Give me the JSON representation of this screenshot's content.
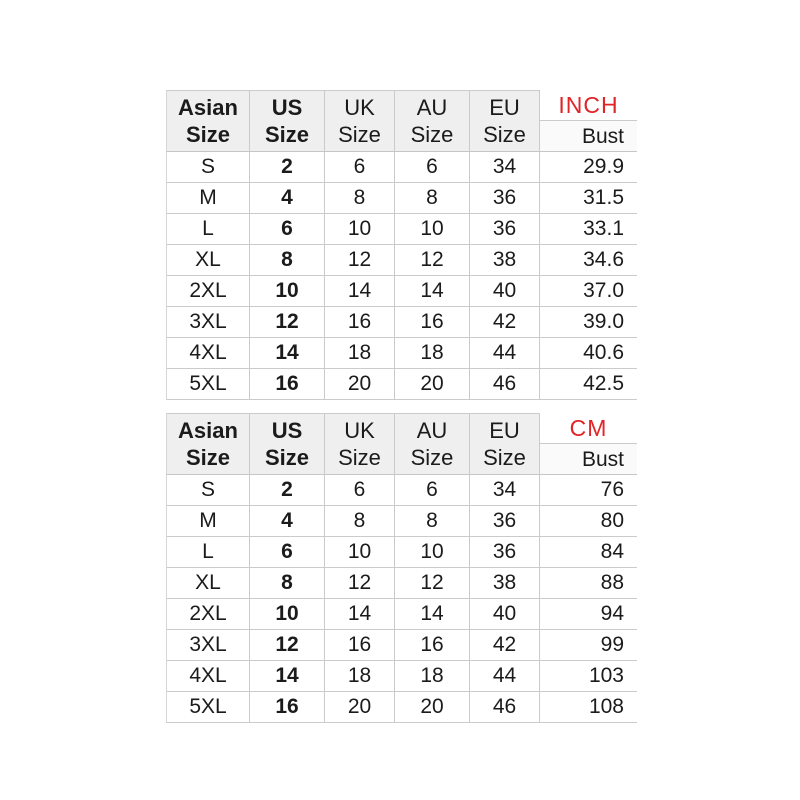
{
  "colors": {
    "accent_red": "#e02428",
    "header_bg": "#f0efef",
    "border": "#cbcbcb",
    "text": "#1b1b1b",
    "background": "#ffffff"
  },
  "chart_data": [
    {
      "type": "table",
      "unit_label": "INCH",
      "measure_label": "Bust",
      "headers": [
        {
          "line1": "Asian",
          "line2": "Size"
        },
        {
          "line1": "US",
          "line2": "Size"
        },
        {
          "line1": "UK",
          "line2": "Size"
        },
        {
          "line1": "AU",
          "line2": "Size"
        },
        {
          "line1": "EU",
          "line2": "Size"
        }
      ],
      "rows": [
        [
          "S",
          "2",
          "6",
          "6",
          "34",
          "29.9"
        ],
        [
          "M",
          "4",
          "8",
          "8",
          "36",
          "31.5"
        ],
        [
          "L",
          "6",
          "10",
          "10",
          "36",
          "33.1"
        ],
        [
          "XL",
          "8",
          "12",
          "12",
          "38",
          "34.6"
        ],
        [
          "2XL",
          "10",
          "14",
          "14",
          "40",
          "37.0"
        ],
        [
          "3XL",
          "12",
          "16",
          "16",
          "42",
          "39.0"
        ],
        [
          "4XL",
          "14",
          "18",
          "18",
          "44",
          "40.6"
        ],
        [
          "5XL",
          "16",
          "20",
          "20",
          "46",
          "42.5"
        ]
      ]
    },
    {
      "type": "table",
      "unit_label": "CM",
      "measure_label": "Bust",
      "headers": [
        {
          "line1": "Asian",
          "line2": "Size"
        },
        {
          "line1": "US",
          "line2": "Size"
        },
        {
          "line1": "UK",
          "line2": "Size"
        },
        {
          "line1": "AU",
          "line2": "Size"
        },
        {
          "line1": "EU",
          "line2": "Size"
        }
      ],
      "rows": [
        [
          "S",
          "2",
          "6",
          "6",
          "34",
          "76"
        ],
        [
          "M",
          "4",
          "8",
          "8",
          "36",
          "80"
        ],
        [
          "L",
          "6",
          "10",
          "10",
          "36",
          "84"
        ],
        [
          "XL",
          "8",
          "12",
          "12",
          "38",
          "88"
        ],
        [
          "2XL",
          "10",
          "14",
          "14",
          "40",
          "94"
        ],
        [
          "3XL",
          "12",
          "16",
          "16",
          "42",
          "99"
        ],
        [
          "4XL",
          "14",
          "18",
          "18",
          "44",
          "103"
        ],
        [
          "5XL",
          "16",
          "20",
          "20",
          "46",
          "108"
        ]
      ]
    }
  ]
}
